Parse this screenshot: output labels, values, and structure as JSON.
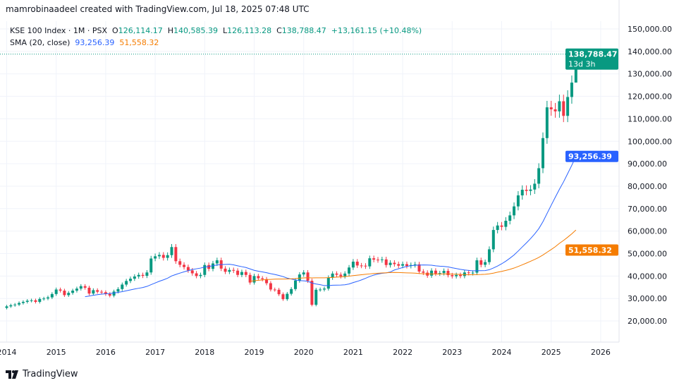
{
  "credit": "mamrobinaadeel created with TradingView.com, Jul 18, 2025 07:48 UTC",
  "legend": {
    "symbol": "KSE 100 Index · 1M · PSX",
    "o_label": "O",
    "o": "126,114.17",
    "h_label": "H",
    "h": "140,585.39",
    "l_label": "L",
    "l": "126,113.28",
    "c_label": "C",
    "c": "138,788.47",
    "change": "+13,161.15 (+10.48%)",
    "sma_label": "SMA (20, close)",
    "sma1": "93,256.39",
    "sma2": "51,558.32"
  },
  "price_tag": {
    "value": "138,788.47",
    "countdown": "13d 3h"
  },
  "sma1_tag": "93,256.39",
  "sma2_tag": "51,558.32",
  "logo": "TradingView",
  "colors": {
    "up": "#089981",
    "down": "#f23645",
    "sma1": "#2962ff",
    "sma2": "#f57c00",
    "grid": "#f0f3fa"
  },
  "chart_data": {
    "type": "candlestick",
    "interval": "1M",
    "start": "2014-01",
    "y_ticks": [
      "20,000.00",
      "30,000.00",
      "40,000.00",
      "50,000.00",
      "60,000.00",
      "70,000.00",
      "80,000.00",
      "90,000.00",
      "100,000.00",
      "110,000.00",
      "120,000.00",
      "130,000.00",
      "140,000.00",
      "150,000.00"
    ],
    "x_ticks": [
      "2014",
      "2015",
      "2016",
      "2017",
      "2018",
      "2019",
      "2020",
      "2021",
      "2022",
      "2023",
      "2024",
      "2025",
      "2026"
    ],
    "ylim": [
      15000,
      155000
    ],
    "last_candle": {
      "open": 126114.17,
      "high": 140585.39,
      "low": 126113.28,
      "close": 138788.47
    },
    "closes": [
      26500,
      27000,
      27300,
      28000,
      28500,
      29000,
      29200,
      28500,
      29800,
      30000,
      30500,
      32000,
      34000,
      33500,
      31500,
      32500,
      33500,
      34400,
      35500,
      34800,
      32200,
      33700,
      33000,
      32800,
      32000,
      31300,
      33100,
      34200,
      36200,
      37800,
      38800,
      39800,
      40500,
      40100,
      41600,
      47800,
      48800,
      49400,
      48100,
      49300,
      52900,
      46600,
      45000,
      44000,
      42500,
      41200,
      40000,
      40500,
      44900,
      43200,
      45600,
      47000,
      43300,
      41900,
      42700,
      42400,
      40500,
      41800,
      40500,
      37100,
      40000,
      39000,
      38600,
      36800,
      34000,
      33900,
      31900,
      29700,
      32100,
      34200,
      38000,
      40700,
      41600,
      37900,
      27200,
      33900,
      34000,
      34400,
      39300,
      41100,
      40600,
      39900,
      41100,
      43800,
      46400,
      44700,
      44600,
      44300,
      47900,
      47300,
      47100,
      47400,
      44900,
      45900,
      45300,
      44600,
      45300,
      44500,
      44900,
      45200,
      42000,
      41500,
      40200,
      42400,
      41100,
      41300,
      42300,
      40400,
      39900,
      40500,
      40000,
      41600,
      41300,
      41500,
      47000,
      45000,
      46200,
      51900,
      60500,
      62500,
      61900,
      64600,
      67000,
      71000,
      75900,
      78400,
      77900,
      78500,
      81100,
      88000,
      101400,
      115100,
      114200,
      113300,
      117800,
      111300,
      119700,
      126100,
      138788.47
    ],
    "first_open": 25800,
    "grid": true
  }
}
